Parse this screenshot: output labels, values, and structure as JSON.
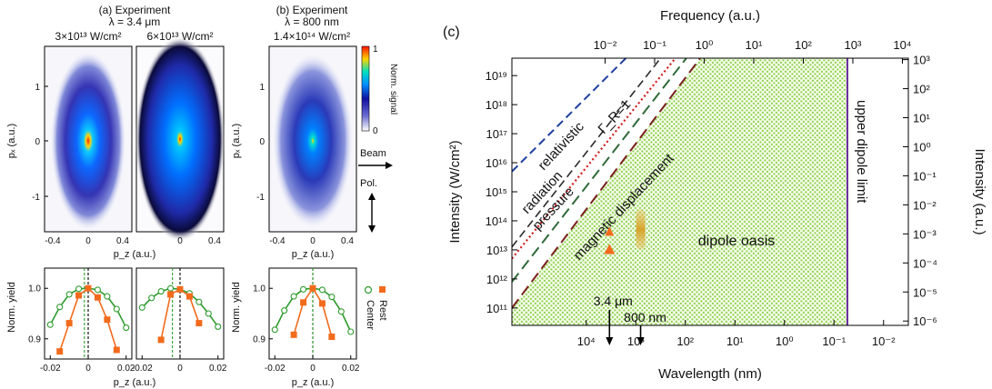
{
  "panels": {
    "a": {
      "title": "(a) Experiment",
      "lambda": "λ = 3.4  μm",
      "intensity_left": "3×10¹³ W/cm²",
      "intensity_right": "6×10¹³ W/cm²"
    },
    "b": {
      "title": "(b) Experiment",
      "lambda": "λ = 800 nm",
      "intensity": "1.4×10¹⁴ W/cm²"
    },
    "c": {
      "label": "(c)"
    }
  },
  "colorbar": {
    "label": "Norm. signal",
    "max": "1",
    "min": "0"
  },
  "beam_label": "Beam",
  "pol_label": "Pol.",
  "legend_bottom": {
    "center": "Center",
    "rest": "Rest"
  },
  "labels": {
    "px": "pₓ (a.u.)",
    "pz": "p_z (a.u.)",
    "norm_yield": "Norm. yield"
  },
  "colors": {
    "center_series": "#2e9b2e",
    "rest_series": "#f26b1d",
    "oasis": "#8fd14f",
    "upper_limit": "#6a2ca0",
    "relativistic": "#1f3f9f",
    "gamma": "#2b2b2b",
    "radiation_pressure": "#d11f1f",
    "magnetic": "#2f6b3a"
  },
  "chart_data": [
    {
      "type": "heatmap",
      "panel": "a-left",
      "xlabel": "p_z (a.u.)",
      "ylabel": "pₓ (a.u.)",
      "xlim": [
        -0.5,
        0.5
      ],
      "ylim": [
        -1.7,
        1.7
      ],
      "xticks": [
        -0.4,
        0,
        0.4
      ],
      "yticks": [
        -1,
        0,
        1
      ],
      "spread_x": 0.12,
      "spread_y": 0.45
    },
    {
      "type": "heatmap",
      "panel": "a-right",
      "xlabel": "p_z (a.u.)",
      "ylabel": "",
      "xlim": [
        -0.5,
        0.5
      ],
      "ylim": [
        -1.7,
        1.7
      ],
      "xticks": [
        0,
        0.4
      ],
      "yticks": [],
      "spread_x": 0.25,
      "spread_y": 0.9
    },
    {
      "type": "heatmap",
      "panel": "b",
      "xlabel": "p_z (a.u.)",
      "ylabel": "pₓ (a.u.)",
      "xlim": [
        -0.5,
        0.5
      ],
      "ylim": [
        -1.7,
        1.7
      ],
      "xticks": [
        -0.4,
        0,
        0.4
      ],
      "yticks": [
        -1,
        0,
        1
      ],
      "spread_x": 0.16,
      "spread_y": 0.45
    },
    {
      "type": "line",
      "panel": "a-left-bottom",
      "xlabel": "p_z (a.u.)",
      "ylabel": "Norm. yield",
      "xlim": [
        -0.023,
        0.023
      ],
      "ylim": [
        0.86,
        1.04
      ],
      "xticks": [
        -0.02,
        0,
        0.02
      ],
      "yticks": [
        0.9,
        1.0
      ],
      "dashed_vlines": [
        {
          "x": 0,
          "color": "black"
        },
        {
          "x": -0.002,
          "color": "green"
        }
      ],
      "series": [
        {
          "name": "Center",
          "x": [
            -0.02,
            -0.015,
            -0.01,
            -0.005,
            0,
            0.005,
            0.01,
            0.015,
            0.02
          ],
          "values": [
            0.928,
            0.963,
            0.988,
            0.999,
            1.0,
            0.997,
            0.984,
            0.959,
            0.922
          ]
        },
        {
          "name": "Rest",
          "x": [
            -0.015,
            -0.01,
            -0.005,
            0,
            0.005,
            0.01,
            0.015
          ],
          "values": [
            0.875,
            0.931,
            0.986,
            1.0,
            0.982,
            0.938,
            0.878
          ]
        }
      ]
    },
    {
      "type": "line",
      "panel": "a-right-bottom",
      "xlabel": "p_z (a.u.)",
      "ylabel": "",
      "xlim": [
        -0.023,
        0.023
      ],
      "ylim": [
        0.86,
        1.04
      ],
      "xticks": [
        -0.02,
        0,
        0.02
      ],
      "yticks": [],
      "dashed_vlines": [
        {
          "x": 0,
          "color": "black"
        },
        {
          "x": -0.004,
          "color": "green"
        }
      ],
      "series": [
        {
          "name": "Center",
          "x": [
            -0.02,
            -0.015,
            -0.01,
            -0.005,
            0,
            0.005,
            0.01,
            0.015,
            0.02
          ],
          "values": [
            0.962,
            0.981,
            0.994,
            1.0,
            0.998,
            0.99,
            0.973,
            0.95,
            0.924
          ]
        },
        {
          "name": "Rest",
          "x": [
            -0.01,
            -0.005,
            0,
            0.005,
            0.01
          ],
          "values": [
            0.898,
            0.988,
            0.998,
            0.984,
            0.931
          ]
        }
      ]
    },
    {
      "type": "line",
      "panel": "b-bottom",
      "xlabel": "p_z (a.u.)",
      "ylabel": "Norm. yield",
      "xlim": [
        -0.023,
        0.023
      ],
      "ylim": [
        0.86,
        1.04
      ],
      "xticks": [
        -0.02,
        0,
        0.02
      ],
      "yticks": [
        0.9,
        1.0
      ],
      "dashed_vlines": [
        {
          "x": 0,
          "color": "black"
        },
        {
          "x": 0,
          "color": "green"
        }
      ],
      "series": [
        {
          "name": "Center",
          "x": [
            -0.02,
            -0.015,
            -0.01,
            -0.005,
            0,
            0.005,
            0.01,
            0.015,
            0.02
          ],
          "values": [
            0.918,
            0.956,
            0.984,
            0.998,
            1.0,
            0.997,
            0.983,
            0.954,
            0.914
          ]
        },
        {
          "name": "Rest",
          "x": [
            -0.01,
            -0.005,
            0,
            0.005,
            0.01
          ],
          "values": [
            0.908,
            0.972,
            1.0,
            0.97,
            0.904
          ]
        }
      ]
    },
    {
      "type": "area",
      "panel": "c",
      "title": "",
      "xlabel": "Wavelength (nm)",
      "ylabel": "Intensity (W/cm²)",
      "top_xlabel": "Frequency (a.u.)",
      "right_ylabel": "Intensity (a.u.)",
      "x_log_range_nm": [
        5.5,
        -2.5
      ],
      "y_log_range": [
        10.4,
        19.6
      ],
      "bottom_ticks": [
        "10⁴",
        "10³",
        "10²",
        "10¹",
        "10⁰",
        "10⁻¹",
        "10⁻²"
      ],
      "bottom_tick_exponents": [
        4,
        3,
        2,
        1,
        0,
        -1,
        -2
      ],
      "top_ticks": [
        "10⁻²",
        "10⁻¹",
        "10⁰",
        "10¹",
        "10²",
        "10³",
        "10⁴"
      ],
      "top_tick_exponents": [
        -2,
        -1,
        0,
        1,
        2,
        3,
        4
      ],
      "left_ticks": [
        "10¹¹",
        "10¹²",
        "10¹³",
        "10¹⁴",
        "10¹⁵",
        "10¹⁶",
        "10¹⁷",
        "10¹⁸",
        "10¹⁹"
      ],
      "left_tick_exponents": [
        11,
        12,
        13,
        14,
        15,
        16,
        17,
        18,
        19
      ],
      "right_ticks": [
        "10⁻⁶",
        "10⁻⁵",
        "10⁻⁴",
        "10⁻³",
        "10⁻²",
        "10⁻¹",
        "10⁰",
        "10¹",
        "10²",
        "10³"
      ],
      "right_tick_exponents": [
        -6,
        -5,
        -4,
        -3,
        -2,
        -1,
        0,
        1,
        2,
        3
      ],
      "regions": [
        {
          "name": "dipole oasis",
          "label": "dipole oasis"
        }
      ],
      "boundaries": [
        {
          "name": "upper dipole limit",
          "label": "upper dipole limit",
          "wavelength_nm_log": -1.27
        },
        {
          "name": "magnetic displacement",
          "label": "magnetic displacement",
          "points_log": [
            [
              5.5,
              11.0
            ],
            [
              1.7,
              19.6
            ]
          ]
        },
        {
          "name": "radiation pressure",
          "label": "radiation pressure",
          "points_log": [
            [
              5.5,
              12.7
            ],
            [
              2.2,
              19.6
            ]
          ]
        },
        {
          "name": "Γ_R=1",
          "label": "Γ_R=1",
          "points_log": [
            [
              5.5,
              13.1
            ],
            [
              2.5,
              19.6
            ]
          ]
        },
        {
          "name": "relativistic",
          "label": "relativistic",
          "points_log": [
            [
              5.5,
              15.7
            ],
            [
              3.2,
              19.6
            ]
          ]
        }
      ],
      "markers": [
        {
          "label": "3.4 μm",
          "wavelength_nm": 3400,
          "intensity_log_range": [
            13.3,
            13.8
          ]
        },
        {
          "label": "800 nm",
          "wavelength_nm": 800,
          "intensity_log_range": [
            13.0,
            14.4
          ]
        }
      ],
      "annotation_labels": {
        "relativistic": "relativistic",
        "radiation": "radiation",
        "pressure": "pressure",
        "gamma": "Γ_R=1",
        "magnetic": "magnetic displacement",
        "oasis": "dipole oasis",
        "upper": "upper dipole limit",
        "m34": "3.4 μm",
        "m800": "800 nm"
      }
    }
  ]
}
